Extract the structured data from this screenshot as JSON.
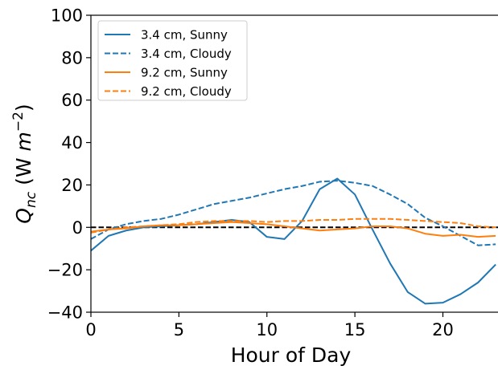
{
  "chart_data": {
    "type": "line",
    "title": "",
    "xlabel": "Hour of Day",
    "ylabel": "Q_nc (W m^-2)",
    "xlim": [
      0,
      24
    ],
    "ylim": [
      -40,
      100
    ],
    "xticks": [
      0,
      5,
      10,
      15,
      20
    ],
    "yticks": [
      -40,
      -20,
      0,
      20,
      40,
      60,
      80,
      100
    ],
    "grid": false,
    "legend_position": "top-left",
    "reference_line": {
      "y": 0,
      "style": "dashed",
      "color": "#000000"
    },
    "series": [
      {
        "name": "3.4 cm, Sunny",
        "color": "#1f77b4",
        "style": "solid",
        "x": [
          0,
          1,
          2,
          3,
          4,
          5,
          6,
          7,
          8,
          9,
          10,
          11,
          12,
          13,
          14,
          15,
          16,
          17,
          18,
          19,
          20,
          21,
          22,
          23
        ],
        "values": [
          -11,
          -4,
          -1.5,
          0,
          0.5,
          1,
          1.5,
          2.5,
          3.5,
          2.5,
          -4.5,
          -5.5,
          3,
          18,
          23,
          15.5,
          -1,
          -17,
          -30.5,
          -36,
          -35.5,
          -31.5,
          -26,
          -17.5
        ]
      },
      {
        "name": "3.4 cm, Cloudy",
        "color": "#1f77b4",
        "style": "dashed",
        "x": [
          0,
          1,
          2,
          3,
          4,
          5,
          6,
          7,
          8,
          9,
          10,
          11,
          12,
          13,
          14,
          15,
          16,
          17,
          18,
          19,
          20,
          21,
          22,
          23
        ],
        "values": [
          -5.5,
          -1,
          1.5,
          3,
          4,
          6,
          8.5,
          11,
          12.5,
          14,
          16,
          18,
          19.5,
          21.5,
          22,
          21,
          19.5,
          15.5,
          11,
          4.5,
          0.5,
          -4,
          -8.5,
          -8
        ]
      },
      {
        "name": "9.2 cm, Sunny",
        "color": "#ff7f0e",
        "style": "solid",
        "x": [
          0,
          1,
          2,
          3,
          4,
          5,
          6,
          7,
          8,
          9,
          10,
          11,
          12,
          13,
          14,
          15,
          16,
          17,
          18,
          19,
          20,
          21,
          22,
          23
        ],
        "values": [
          -2,
          -1,
          -0.5,
          0.5,
          1,
          1,
          1.5,
          2,
          2.5,
          2,
          1.5,
          0.5,
          -0.5,
          -1.5,
          -1,
          -0.5,
          0.5,
          0.5,
          -0.5,
          -3,
          -4,
          -3.5,
          -4.5,
          -4
        ]
      },
      {
        "name": "9.2 cm, Cloudy",
        "color": "#ff7f0e",
        "style": "dashed",
        "x": [
          0,
          1,
          2,
          3,
          4,
          5,
          6,
          7,
          8,
          9,
          10,
          11,
          12,
          13,
          14,
          15,
          16,
          17,
          18,
          19,
          20,
          21,
          22,
          23
        ],
        "values": [
          -2.5,
          -1,
          0,
          0.5,
          1,
          1.5,
          2.5,
          3,
          3,
          3,
          2.5,
          3,
          3,
          3.5,
          3.5,
          4,
          4,
          4,
          3.5,
          3,
          2.5,
          2,
          0.5,
          0
        ]
      }
    ]
  }
}
